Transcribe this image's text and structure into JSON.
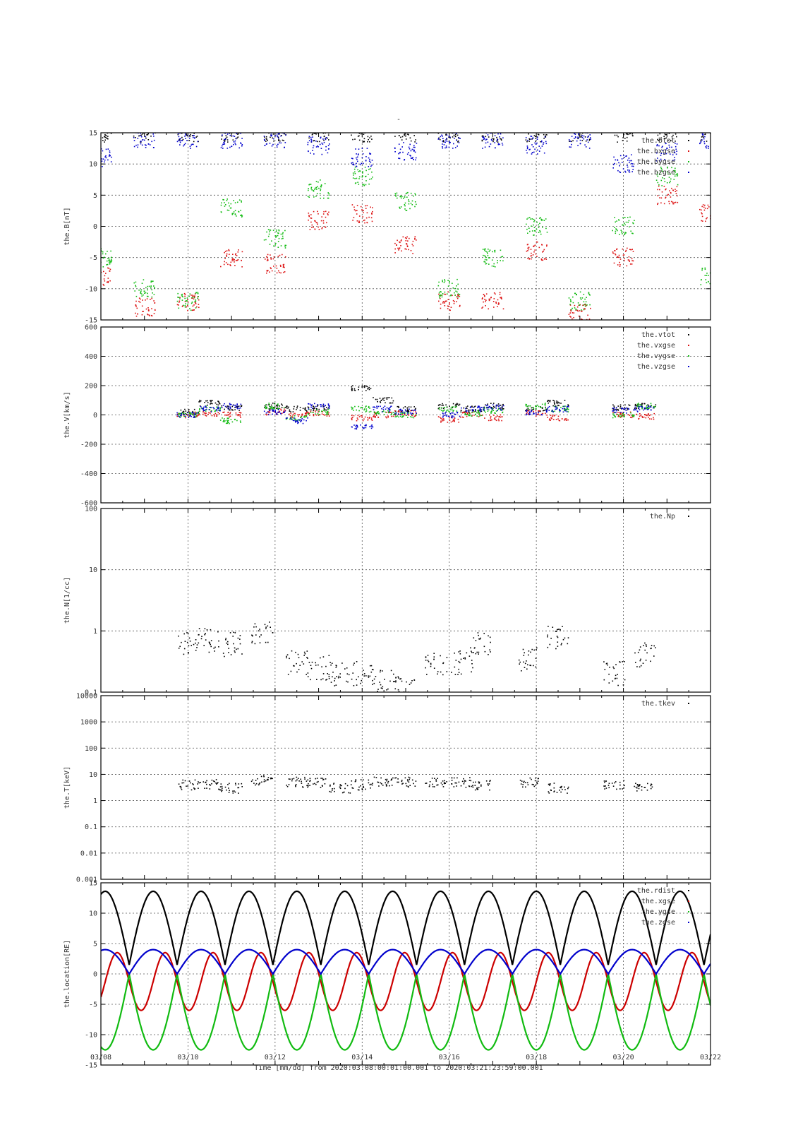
{
  "figure": {
    "title": "-",
    "xlabel": "Time [mm/dd]  from 2020:03:08:00:01:00.001  to  2020:03:21:23:59:00.001",
    "x_ticks": [
      "03/08",
      "03/10",
      "03/12",
      "03/14",
      "03/16",
      "03/18",
      "03/20",
      "03/22"
    ]
  },
  "chart_data": [
    {
      "type": "scatter",
      "panel": "magnetic-field",
      "ylabel": "the.B[nT]",
      "ylim": [
        -15,
        15
      ],
      "yticks": [
        -15,
        -10,
        -5,
        0,
        5,
        10,
        15
      ],
      "y_scale": "linear",
      "grid": true,
      "legend_position": "top-right",
      "x": [
        "03/08",
        "03/09",
        "03/10",
        "03/11",
        "03/12",
        "03/13",
        "03/14",
        "03/15",
        "03/16",
        "03/17",
        "03/18",
        "03/19",
        "03/20",
        "03/21",
        "03/22"
      ],
      "series": [
        {
          "name": "the.btot",
          "color": "#000000",
          "values": [
            15,
            15,
            15,
            15,
            15,
            15,
            15,
            15,
            15,
            15,
            15,
            15,
            15,
            15,
            15
          ]
        },
        {
          "name": "the.bxgse",
          "color": "#dd1111",
          "values": [
            -8,
            -13,
            -12,
            -5,
            -6,
            1,
            2,
            -3,
            -12,
            -12,
            -4,
            -14,
            -5,
            5,
            2
          ]
        },
        {
          "name": "the.bygse",
          "color": "#11bb11",
          "values": [
            -5,
            -10,
            -12,
            3,
            -2,
            6,
            8,
            4,
            -10,
            -5,
            0,
            -12,
            0,
            8,
            -8
          ]
        },
        {
          "name": "the.bzgse",
          "color": "#0000cc",
          "values": [
            11,
            14,
            14,
            14,
            14,
            13,
            11,
            12,
            14,
            14,
            13,
            14,
            10,
            12,
            14
          ]
        }
      ]
    },
    {
      "type": "scatter",
      "panel": "velocity",
      "ylabel": "the.V[km/s]",
      "ylim": [
        -600,
        600
      ],
      "yticks": [
        -600,
        -400,
        -200,
        0,
        200,
        400,
        600
      ],
      "y_scale": "linear",
      "grid": true,
      "legend_position": "top-right",
      "x": [
        "03/10",
        "03/10.5",
        "03/11",
        "03/12",
        "03/12.5",
        "03/13",
        "03/14",
        "03/14.5",
        "03/15",
        "03/16",
        "03/16.5",
        "03/17",
        "03/18",
        "03/18.5",
        "03/20",
        "03/20.5"
      ],
      "series": [
        {
          "name": "the.vtot",
          "color": "#000000",
          "values": [
            20,
            80,
            50,
            60,
            40,
            50,
            180,
            100,
            40,
            60,
            40,
            60,
            40,
            80,
            50,
            60
          ]
        },
        {
          "name": "the.vxgse",
          "color": "#dd1111",
          "values": [
            0,
            10,
            0,
            20,
            0,
            10,
            -20,
            0,
            10,
            -30,
            0,
            -20,
            10,
            -20,
            0,
            -10
          ]
        },
        {
          "name": "the.vygse",
          "color": "#11bb11",
          "values": [
            0,
            40,
            -40,
            60,
            -20,
            20,
            40,
            20,
            0,
            40,
            10,
            30,
            60,
            40,
            0,
            60
          ]
        },
        {
          "name": "the.vzgse",
          "color": "#0000cc",
          "values": [
            0,
            40,
            60,
            20,
            -40,
            60,
            -80,
            40,
            20,
            0,
            40,
            50,
            20,
            40,
            30,
            40
          ]
        }
      ]
    },
    {
      "type": "scatter",
      "panel": "density",
      "ylabel": "the.N[1/cc]",
      "ylim": [
        0.1,
        100
      ],
      "yticks": [
        0.1,
        1,
        10,
        100
      ],
      "y_scale": "log",
      "grid": true,
      "legend_position": "top-right",
      "x": [
        "03/10",
        "03/10.5",
        "03/11",
        "03/11.7",
        "03/12.5",
        "03/13",
        "03/13.5",
        "03/14",
        "03/14.5",
        "03/15",
        "03/15.7",
        "03/16.3",
        "03/16.7",
        "03/17.8",
        "03/18.5",
        "03/19.8",
        "03/20.5"
      ],
      "series": [
        {
          "name": "the.Np",
          "color": "#000000",
          "values": [
            0.6,
            0.7,
            0.6,
            0.9,
            0.3,
            0.25,
            0.2,
            0.2,
            0.15,
            0.12,
            0.3,
            0.3,
            0.6,
            0.35,
            0.8,
            0.2,
            0.4
          ]
        }
      ]
    },
    {
      "type": "scatter",
      "panel": "temperature",
      "ylabel": "the.T[keV]",
      "ylim": [
        0.001,
        10000
      ],
      "yticks": [
        0.001,
        0.01,
        0.1,
        1,
        10,
        100,
        1000,
        10000
      ],
      "ytick_labels": [
        "0.001",
        "0.01",
        "0.1",
        "1",
        "10",
        "100",
        "1000",
        "10000"
      ],
      "y_scale": "log",
      "grid": true,
      "legend_position": "top-right",
      "x": [
        "03/10",
        "03/10.5",
        "03/11",
        "03/11.7",
        "03/12.5",
        "03/13",
        "03/13.5",
        "03/14",
        "03/14.5",
        "03/15",
        "03/15.7",
        "03/16.3",
        "03/16.7",
        "03/17.8",
        "03/18.5",
        "03/19.8",
        "03/20.5"
      ],
      "series": [
        {
          "name": "the.tkev",
          "color": "#000000",
          "values": [
            4,
            4,
            3,
            6,
            5,
            5,
            3,
            4,
            5,
            5,
            5,
            5,
            4,
            5,
            3,
            4,
            3
          ]
        }
      ]
    },
    {
      "type": "line",
      "panel": "location",
      "ylabel": "the.location[RE]",
      "ylim": [
        -15,
        15
      ],
      "yticks": [
        -15,
        -10,
        -5,
        0,
        5,
        10,
        15
      ],
      "y_scale": "linear",
      "grid": true,
      "legend_position": "top-right",
      "orbit_period_days": 1.1,
      "series": [
        {
          "name": "the.rdist",
          "color": "#000000",
          "min": 1.5,
          "max": 13.6
        },
        {
          "name": "the.xgse",
          "color": "#cc0000",
          "min": -6,
          "max": 3.5
        },
        {
          "name": "the.ygse",
          "color": "#11bb11",
          "min": -12.5,
          "max": 0
        },
        {
          "name": "the.zgse",
          "color": "#0000cc",
          "min": 0,
          "max": 4
        }
      ]
    }
  ]
}
